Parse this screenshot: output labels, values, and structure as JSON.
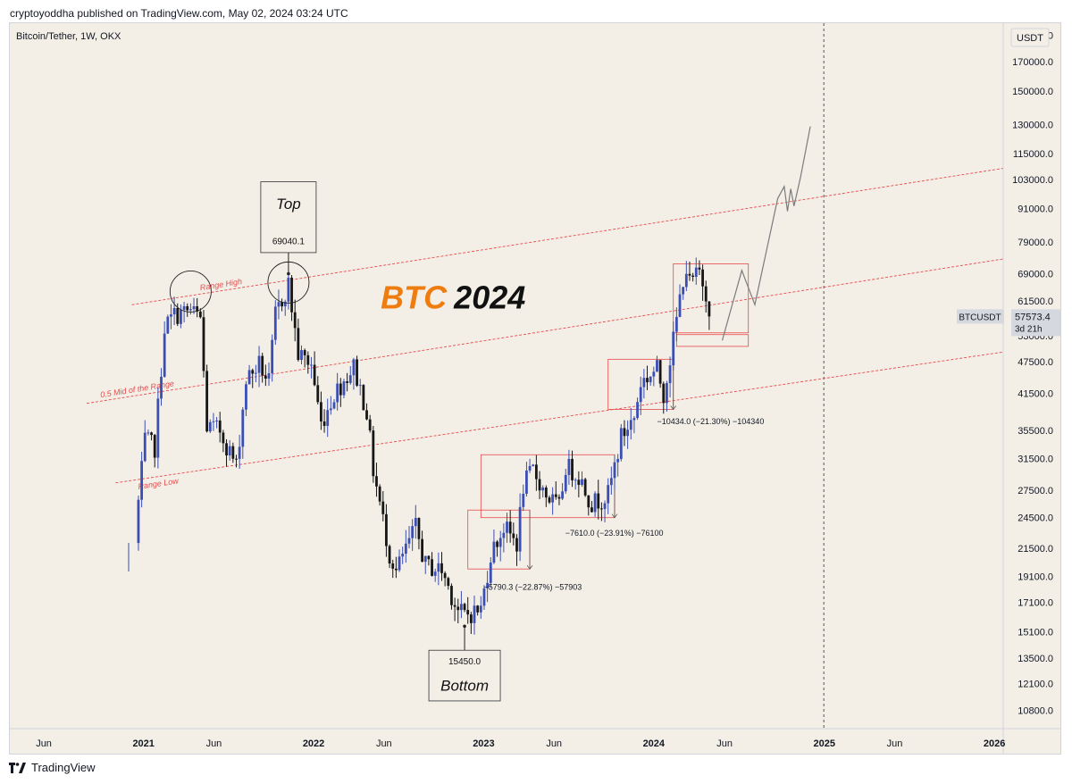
{
  "header": {
    "published": "cryptoyoddha published on TradingView.com, May 02, 2024 03:24 UTC"
  },
  "footer": {
    "brand": "TradingView",
    "logo_icon": "tradingview-logo-icon"
  },
  "chart_data": {
    "type": "candlestick",
    "symbol_line": "Bitcoin/Tether, 1W, OKX",
    "currency_button": "USDT",
    "y_scale": "log",
    "ylim": [
      10000,
      200000
    ],
    "xlim": [
      "2020-03-20",
      "2026-01-20"
    ],
    "y_ticks": [
      "190000.0",
      "170000.0",
      "150000.0",
      "130000.0",
      "115000.0",
      "103000.0",
      "91000.0",
      "79000.0",
      "69000.0",
      "61500.0",
      "53000.0",
      "47500.0",
      "41500.0",
      "35500.0",
      "31500.0",
      "27500.0",
      "24500.0",
      "21500.0",
      "19100.0",
      "17100.0",
      "15100.0",
      "13500.0",
      "12100.0",
      "10800.0"
    ],
    "x_ticks": [
      {
        "label": "Jun",
        "date": "2020-06-01",
        "bold": false
      },
      {
        "label": "2021",
        "date": "2021-01-01",
        "bold": true
      },
      {
        "label": "Jun",
        "date": "2021-06-01",
        "bold": false
      },
      {
        "label": "2022",
        "date": "2022-01-01",
        "bold": true
      },
      {
        "label": "Jun",
        "date": "2022-06-01",
        "bold": false
      },
      {
        "label": "2023",
        "date": "2023-01-01",
        "bold": true
      },
      {
        "label": "Jun",
        "date": "2023-06-01",
        "bold": false
      },
      {
        "label": "2024",
        "date": "2024-01-01",
        "bold": true
      },
      {
        "label": "Jun",
        "date": "2024-06-01",
        "bold": false
      },
      {
        "label": "2025",
        "date": "2025-01-01",
        "bold": true
      },
      {
        "label": "Jun",
        "date": "2025-06-01",
        "bold": false
      },
      {
        "label": "2026",
        "date": "2026-01-01",
        "bold": true
      }
    ],
    "price_label": {
      "symbol": "BTCUSDT",
      "price": "57573.4",
      "countdown": "3d 21h"
    },
    "title": {
      "part1": "BTC",
      "part2": "2024"
    },
    "annotations": {
      "top": {
        "label": "Top",
        "value": "69040.1",
        "date": "2021-11-08",
        "price": 69040.1
      },
      "bottom": {
        "label": "Bottom",
        "value": "15450.0",
        "date": "2022-11-21",
        "price": 15450
      },
      "range_high": "Range High",
      "range_mid": "0.5 Mid of the Range",
      "range_low": "Range Low",
      "measure_1": "−5790.3 (−22.87%) −57903",
      "measure_2": "−7610.0 (−23.91%) −76100",
      "measure_3": "−10434.0 (−21.30%) −104340"
    },
    "lines": {
      "range_high": {
        "from": [
          "2020-12-07",
          60500
        ],
        "to": [
          "2026-01-20",
          108000
        ]
      },
      "range_mid": {
        "from": [
          "2020-09-01",
          39800
        ],
        "to": [
          "2026-01-20",
          73500
        ]
      },
      "range_low": {
        "from": [
          "2020-11-02",
          28400
        ],
        "to": [
          "2026-01-20",
          49500
        ]
      },
      "event_line": "2024-12-31",
      "projection": [
        [
          "2024-05-27",
          52000
        ],
        [
          "2024-07-08",
          70000
        ],
        [
          "2024-08-05",
          60500
        ],
        [
          "2024-09-23",
          95000
        ],
        [
          "2024-10-07",
          100000
        ],
        [
          "2024-10-14",
          90000
        ],
        [
          "2024-10-21",
          99000
        ],
        [
          "2024-10-28",
          92000
        ],
        [
          "2024-11-11",
          104000
        ],
        [
          "2024-12-02",
          129000
        ]
      ]
    },
    "boxes": [
      {
        "from": [
          "2022-11-28",
          19700
        ],
        "to": [
          "2023-04-10",
          25300
        ]
      },
      {
        "from": [
          "2022-12-26",
          24500
        ],
        "to": [
          "2023-10-09",
          32000
        ]
      },
      {
        "from": [
          "2023-09-25",
          38800
        ],
        "to": [
          "2024-02-12",
          48000
        ]
      },
      {
        "from": [
          "2024-02-12",
          53700
        ],
        "to": [
          "2024-07-22",
          72000
        ]
      },
      {
        "from": [
          "2024-02-19",
          50700
        ],
        "to": [
          "2024-07-22",
          53300
        ]
      }
    ],
    "circles": [
      {
        "date": "2021-04-12",
        "price": 64000
      },
      {
        "date": "2021-11-08",
        "price": 66500
      }
    ],
    "anchors": [
      [
        "2020-12-14",
        23000
      ],
      [
        "2021-01-04",
        34000
      ],
      [
        "2021-01-25",
        33000
      ],
      [
        "2021-02-15",
        55000
      ],
      [
        "2021-03-08",
        58000
      ],
      [
        "2021-04-12",
        59000
      ],
      [
        "2021-05-03",
        57000
      ],
      [
        "2021-05-17",
        36000
      ],
      [
        "2021-06-14",
        35500
      ],
      [
        "2021-07-19",
        30500
      ],
      [
        "2021-08-09",
        44000
      ],
      [
        "2021-09-06",
        47000
      ],
      [
        "2021-09-27",
        43500
      ],
      [
        "2021-10-11",
        58000
      ],
      [
        "2021-11-08",
        66000
      ],
      [
        "2021-11-29",
        49000
      ],
      [
        "2021-12-27",
        47000
      ],
      [
        "2022-01-17",
        36500
      ],
      [
        "2022-02-14",
        41500
      ],
      [
        "2022-03-28",
        46500
      ],
      [
        "2022-04-25",
        38500
      ],
      [
        "2022-05-09",
        30000
      ],
      [
        "2022-06-13",
        21000
      ],
      [
        "2022-06-27",
        19500
      ],
      [
        "2022-08-08",
        23500
      ],
      [
        "2022-08-29",
        20000
      ],
      [
        "2022-10-03",
        19600
      ],
      [
        "2022-11-07",
        16500
      ],
      [
        "2022-11-21",
        16200
      ],
      [
        "2022-12-26",
        16600
      ],
      [
        "2023-01-16",
        21000
      ],
      [
        "2023-02-13",
        23500
      ],
      [
        "2023-03-13",
        22000
      ],
      [
        "2023-03-27",
        28000
      ],
      [
        "2023-04-17",
        30000
      ],
      [
        "2023-05-15",
        27000
      ],
      [
        "2023-06-12",
        25500
      ],
      [
        "2023-06-26",
        30500
      ],
      [
        "2023-07-24",
        29300
      ],
      [
        "2023-08-21",
        26000
      ],
      [
        "2023-09-25",
        27000
      ],
      [
        "2023-10-23",
        34500
      ],
      [
        "2023-11-20",
        37500
      ],
      [
        "2023-12-04",
        43500
      ],
      [
        "2024-01-08",
        46000
      ],
      [
        "2024-01-22",
        41500
      ],
      [
        "2024-02-12",
        52000
      ],
      [
        "2024-03-04",
        68000
      ],
      [
        "2024-03-11",
        70500
      ],
      [
        "2024-03-18",
        66000
      ],
      [
        "2024-04-08",
        69500
      ],
      [
        "2024-04-22",
        64000
      ],
      [
        "2024-04-29",
        57573
      ]
    ],
    "first_candle": {
      "date": "2020-11-30",
      "price": 19500,
      "low": 22000
    },
    "bull_color": "#3b4eb4",
    "bear_color": "#161616",
    "range_line_color": "#e8494a",
    "title_accent": "#ef7c0e"
  }
}
